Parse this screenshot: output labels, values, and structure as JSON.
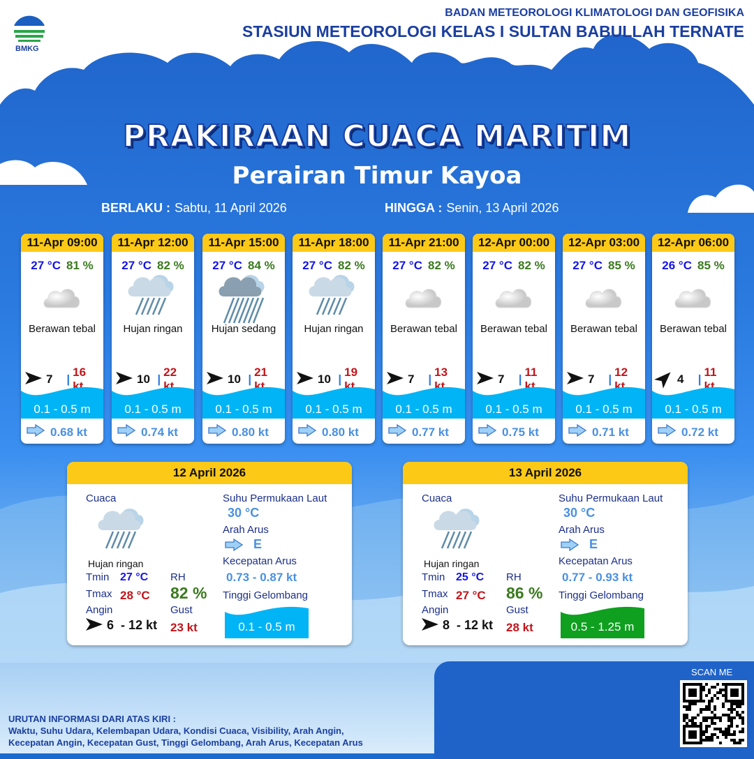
{
  "header": {
    "agency": "BADAN METEOROLOGI KLIMATOLOGI DAN GEOFISIKA",
    "station": "STASIUN METEOROLOGI KELAS I SULTAN BABULLAH TERNATE",
    "logo_text": "BMKG"
  },
  "title": "PRAKIRAAN CUACA MARITIM",
  "subtitle": "Perairan Timur Kayoa",
  "validity": {
    "from_label": "BERLAKU :",
    "from_value": "Sabtu, 11 April 2026",
    "to_label": "HINGGA :",
    "to_value": "Senin, 13 April 2026"
  },
  "colors": {
    "header_yellow": "#fcc917",
    "temp": "#1414e6",
    "rh": "#3a7a1e",
    "gust": "#c0151a",
    "wave_blue": "#00b4f5",
    "wave_green": "#0fa020",
    "current": "#4a90e2"
  },
  "forecasts": [
    {
      "time": "11-Apr 09:00",
      "temp": "27 °C",
      "rh": "81 %",
      "icon": "cloudy-icon",
      "condition": "Berawan tebal",
      "wind_dir": "east",
      "wind": "7",
      "gust": "16 kt",
      "wave": "0.1 - 0.5 m",
      "current": "0.68 kt"
    },
    {
      "time": "11-Apr 12:00",
      "temp": "27 °C",
      "rh": "82 %",
      "icon": "light-rain-icon",
      "condition": "Hujan ringan",
      "wind_dir": "east",
      "wind": "10",
      "gust": "22 kt",
      "wave": "0.1 - 0.5 m",
      "current": "0.74 kt"
    },
    {
      "time": "11-Apr 15:00",
      "temp": "27 °C",
      "rh": "84 %",
      "icon": "moderate-rain-icon",
      "condition": "Hujan sedang",
      "wind_dir": "east",
      "wind": "10",
      "gust": "21 kt",
      "wave": "0.1 - 0.5 m",
      "current": "0.80 kt"
    },
    {
      "time": "11-Apr 18:00",
      "temp": "27 °C",
      "rh": "82 %",
      "icon": "light-rain-icon",
      "condition": "Hujan ringan",
      "wind_dir": "east",
      "wind": "10",
      "gust": "19 kt",
      "wave": "0.1 - 0.5 m",
      "current": "0.80 kt"
    },
    {
      "time": "11-Apr 21:00",
      "temp": "27 °C",
      "rh": "82 %",
      "icon": "cloudy-icon",
      "condition": "Berawan tebal",
      "wind_dir": "east",
      "wind": "7",
      "gust": "13 kt",
      "wave": "0.1 - 0.5 m",
      "current": "0.77 kt"
    },
    {
      "time": "12-Apr 00:00",
      "temp": "27 °C",
      "rh": "82 %",
      "icon": "cloudy-icon",
      "condition": "Berawan tebal",
      "wind_dir": "east",
      "wind": "7",
      "gust": "11 kt",
      "wave": "0.1 - 0.5 m",
      "current": "0.75 kt"
    },
    {
      "time": "12-Apr 03:00",
      "temp": "27 °C",
      "rh": "85 %",
      "icon": "cloudy-icon",
      "condition": "Berawan tebal",
      "wind_dir": "east",
      "wind": "7",
      "gust": "12 kt",
      "wave": "0.1 - 0.5 m",
      "current": "0.71 kt"
    },
    {
      "time": "12-Apr 06:00",
      "temp": "26 °C",
      "rh": "85 %",
      "icon": "cloudy-icon",
      "condition": "Berawan tebal",
      "wind_dir": "northeast",
      "wind": "4",
      "gust": "11 kt",
      "wave": "0.1 - 0.5 m",
      "current": "0.72 kt"
    }
  ],
  "labels": {
    "cuaca": "Cuaca",
    "tmin": "Tmin",
    "tmax": "Tmax",
    "rh": "RH",
    "angin": "Angin",
    "gust": "Gust",
    "sst": "Suhu Permukaan Laut",
    "arah_arus": "Arah Arus",
    "kec_arus": "Kecepatan Arus",
    "tinggi_gel": "Tinggi Gelombang"
  },
  "daily": [
    {
      "date": "12 April 2026",
      "condition": "Hujan ringan",
      "tmin": "27 °C",
      "tmax": "28 °C",
      "rh": "82 %",
      "wind": "6  - 12 kt",
      "gust": "23 kt",
      "sst": "30 °C",
      "current_dir": "E",
      "current_speed": "0.73 - 0.87 kt",
      "wave": "0.1 - 0.5 m",
      "wave_color": "#00b4f5"
    },
    {
      "date": "13 April 2026",
      "condition": "Hujan ringan",
      "tmin": "25 °C",
      "tmax": "27 °C",
      "rh": "86 %",
      "wind": "8  - 12 kt",
      "gust": "28 kt",
      "sst": "30 °C",
      "current_dir": "E",
      "current_speed": "0.77 - 0.93 kt",
      "wave": "0.5 - 1.25 m",
      "wave_color": "#0fa020"
    }
  ],
  "footer": {
    "line1": "URUTAN INFORMASI DARI ATAS KIRI :",
    "line2": "Waktu, Suhu Udara, Kelembapan Udara, Kondisi Cuaca, Visibility, Arah Angin,",
    "line3": "Kecepatan Angin, Kecepatan Gust, Tinggi Gelombang, Arah Arus, Kecepatan Arus"
  },
  "qr": {
    "label": "SCAN ME"
  }
}
